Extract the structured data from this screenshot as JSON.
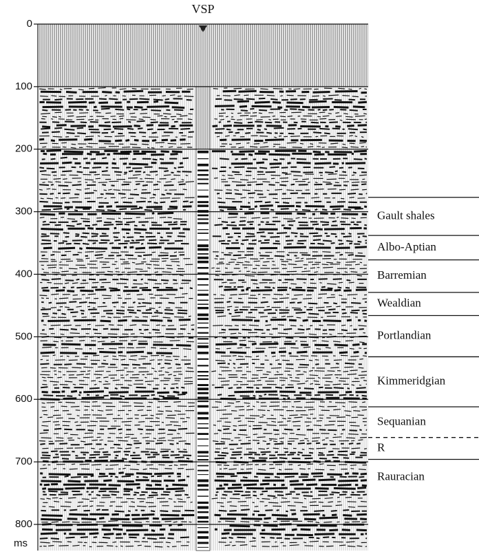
{
  "chart_data": {
    "type": "seismic",
    "title": "VSP",
    "ylabel": "ms",
    "ylim": [
      0,
      800
    ],
    "yticks": [
      0,
      100,
      200,
      300,
      400,
      500,
      600,
      700,
      800
    ],
    "grid": true,
    "formations": [
      {
        "name": "Gault shales",
        "top": 277,
        "line_style": "solid"
      },
      {
        "name": "Albo-Aptian",
        "top": 338,
        "line_style": "solid"
      },
      {
        "name": "Barremian",
        "top": 377,
        "line_style": "solid"
      },
      {
        "name": "Wealdian",
        "top": 429,
        "line_style": "solid"
      },
      {
        "name": "Portlandian",
        "top": 466,
        "line_style": "solid"
      },
      {
        "name": "Kimmeridgian",
        "top": 532,
        "line_style": "solid"
      },
      {
        "name": "Sequanian",
        "top": 612,
        "line_style": "solid"
      },
      {
        "name": "R",
        "top": 661,
        "line_style": "dashed"
      },
      {
        "name": "Rauracian",
        "top": 696,
        "line_style": "solid"
      }
    ]
  }
}
